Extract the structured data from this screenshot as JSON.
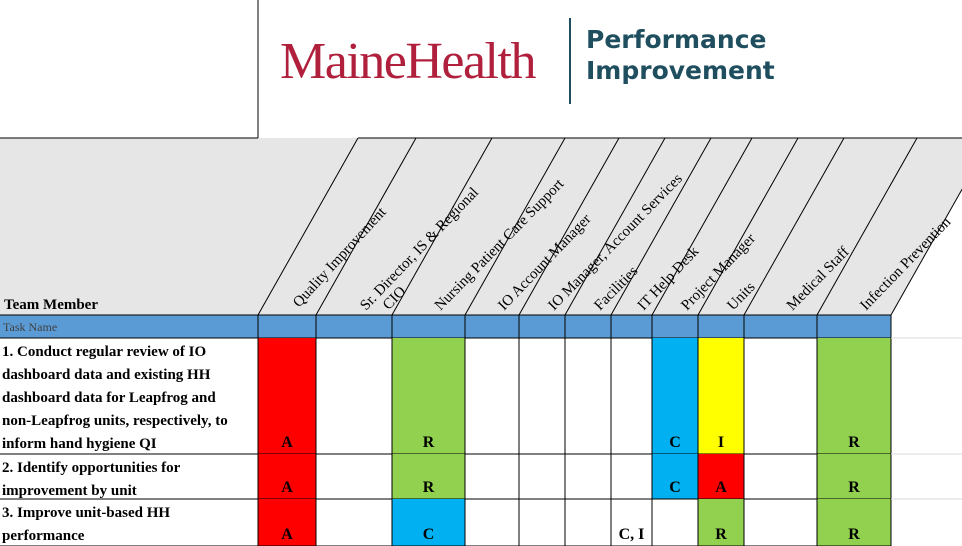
{
  "logo": {
    "brand_name": "MaineHealth",
    "brand_color": "#B01F3C"
  },
  "program": {
    "line1": "Performance",
    "line2": "Improvement",
    "color": "#1F4E5F"
  },
  "team_member_header": "Team Member",
  "task_name_label": "Task Name",
  "roles": [
    "Quality Improvement",
    "Sr. Director, IS & Regional CIO",
    "Nursing Patient Care Support",
    "IO Account Manager",
    "IO Manager, Account Services",
    "Facilities",
    "IT Help Desk",
    "Project Manager",
    "Units",
    "Medical Staff",
    "Infection Prevention"
  ],
  "tasks": [
    {
      "lines": [
        "1. Conduct regular review of IO",
        "dashboard data and existing HH",
        "dashboard data for Leapfrog and",
        "non-Leapfrog units, respectively, to",
        "inform hand hygiene QI"
      ],
      "cells": [
        "A",
        "",
        "R",
        "",
        "",
        "",
        "",
        "C",
        "I",
        "",
        "R"
      ],
      "fills": [
        "red",
        "",
        "green",
        "",
        "",
        "",
        "",
        "blue",
        "yellow",
        "",
        "green"
      ]
    },
    {
      "lines": [
        "2. Identify opportunities for",
        "improvement by unit"
      ],
      "cells": [
        "A",
        "",
        "R",
        "",
        "",
        "",
        "",
        "C",
        "A",
        "",
        "R"
      ],
      "fills": [
        "red",
        "",
        "green",
        "",
        "",
        "",
        "",
        "blue",
        "red",
        "",
        "green"
      ]
    },
    {
      "lines": [
        "3. Improve unit-based HH",
        "performance"
      ],
      "cells": [
        "A",
        "",
        "C",
        "",
        "",
        "",
        "C, I",
        "",
        "R",
        "",
        "R"
      ],
      "fills": [
        "red",
        "",
        "blue",
        "",
        "",
        "",
        "",
        "",
        "green",
        "",
        "green"
      ]
    }
  ],
  "colors": {
    "red": "#FF0000",
    "green": "#92D050",
    "blue": "#00B0F0",
    "yellow": "#FFFF00",
    "task_band": "#5B9BD5",
    "header_band": "#E7E6E6",
    "grid": "#000000",
    "light_grid": "#D9D9D9"
  }
}
